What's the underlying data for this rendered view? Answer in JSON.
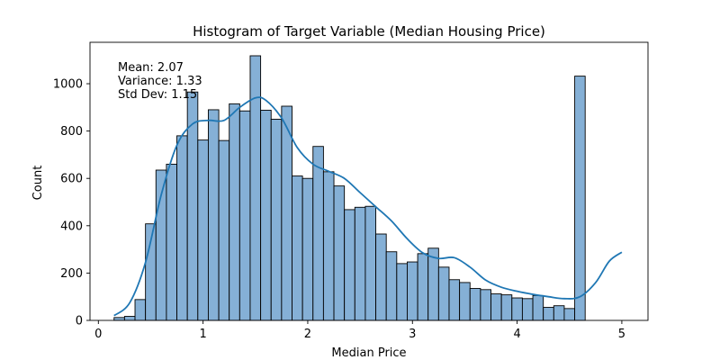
{
  "chart_data": {
    "type": "bar",
    "title": "Histogram of Target Variable (Median Housing Price)",
    "xlabel": "Median Price",
    "ylabel": "Count",
    "xlim": [
      -0.08,
      5.25
    ],
    "ylim": [
      0,
      1175
    ],
    "xticks": [
      0,
      1,
      2,
      3,
      4,
      5
    ],
    "yticks": [
      0,
      200,
      400,
      600,
      800,
      1000
    ],
    "grid": false,
    "bins": {
      "start": 0.15,
      "width": 0.1,
      "counts": [
        12,
        17,
        88,
        408,
        635,
        660,
        780,
        965,
        762,
        890,
        760,
        915,
        885,
        1118,
        888,
        850,
        905,
        610,
        600,
        735,
        628,
        568,
        468,
        478,
        482,
        365,
        290,
        240,
        247,
        282,
        305,
        225,
        172,
        160,
        135,
        130,
        112,
        108,
        95,
        92,
        105,
        55,
        62,
        50,
        1032
      ]
    },
    "kde": {
      "x": [
        0.15,
        0.3,
        0.45,
        0.6,
        0.75,
        0.9,
        1.05,
        1.2,
        1.35,
        1.5,
        1.6,
        1.75,
        1.9,
        2.05,
        2.2,
        2.35,
        2.5,
        2.65,
        2.8,
        2.95,
        3.1,
        3.25,
        3.4,
        3.55,
        3.7,
        3.85,
        4.0,
        4.15,
        4.3,
        4.45,
        4.6,
        4.75,
        4.88,
        5.0
      ],
      "y": [
        20,
        75,
        245,
        530,
        740,
        830,
        845,
        845,
        900,
        940,
        930,
        855,
        730,
        660,
        630,
        600,
        540,
        480,
        420,
        345,
        285,
        262,
        265,
        225,
        170,
        140,
        123,
        110,
        100,
        92,
        100,
        160,
        250,
        288
      ]
    },
    "annotations": [
      "Mean: 2.07",
      "Variance: 1.33",
      "Std Dev: 1.15"
    ]
  }
}
